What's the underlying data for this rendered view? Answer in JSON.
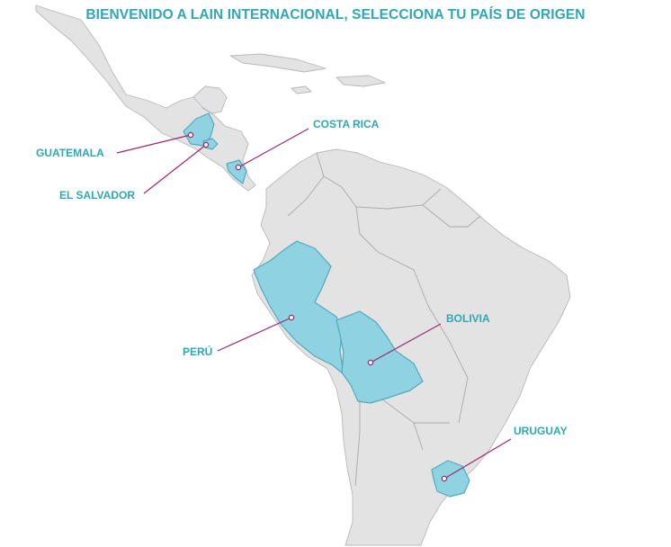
{
  "page": {
    "title": "BIENVENIDO A LAIN INTERNACIONAL, SELECCIONA TU PAÍS DE ORIGEN"
  },
  "colors": {
    "accent_text": "#2fa7b4",
    "highlight_fill": "#8fd2e2",
    "highlight_stroke": "#52a9bd",
    "land_fill": "#e3e3e3",
    "leader_line": "#9b2a6e"
  },
  "countries": [
    {
      "id": "guatemala",
      "label": "GUATEMALA"
    },
    {
      "id": "el-salvador",
      "label": "EL SALVADOR"
    },
    {
      "id": "costa-rica",
      "label": "COSTA RICA"
    },
    {
      "id": "peru",
      "label": "PERÚ"
    },
    {
      "id": "bolivia",
      "label": "BOLIVIA"
    },
    {
      "id": "uruguay",
      "label": "URUGUAY"
    }
  ]
}
